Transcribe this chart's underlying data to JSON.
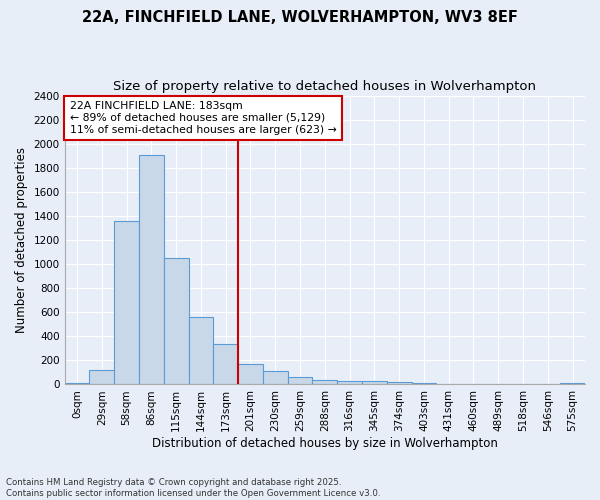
{
  "title1": "22A, FINCHFIELD LANE, WOLVERHAMPTON, WV3 8EF",
  "title2": "Size of property relative to detached houses in Wolverhampton",
  "xlabel": "Distribution of detached houses by size in Wolverhampton",
  "ylabel": "Number of detached properties",
  "footnote1": "Contains HM Land Registry data © Crown copyright and database right 2025.",
  "footnote2": "Contains public sector information licensed under the Open Government Licence v3.0.",
  "bin_labels": [
    "0sqm",
    "29sqm",
    "58sqm",
    "86sqm",
    "115sqm",
    "144sqm",
    "173sqm",
    "201sqm",
    "230sqm",
    "259sqm",
    "288sqm",
    "316sqm",
    "345sqm",
    "374sqm",
    "403sqm",
    "431sqm",
    "460sqm",
    "489sqm",
    "518sqm",
    "546sqm",
    "575sqm"
  ],
  "bar_heights": [
    10,
    120,
    1360,
    1910,
    1050,
    560,
    335,
    170,
    110,
    65,
    40,
    30,
    25,
    20,
    10,
    5,
    3,
    2,
    1,
    0,
    10
  ],
  "bar_color": "#c8d8e8",
  "bar_edge_color": "#5b9bd5",
  "property_line_color": "#cc0000",
  "annotation_line1": "22A FINCHFIELD LANE: 183sqm",
  "annotation_line2": "← 89% of detached houses are smaller (5,129)",
  "annotation_line3": "11% of semi-detached houses are larger (623) →",
  "annotation_box_color": "#ffffff",
  "annotation_box_edge_color": "#cc0000",
  "ylim": [
    0,
    2400
  ],
  "yticks": [
    0,
    200,
    400,
    600,
    800,
    1000,
    1200,
    1400,
    1600,
    1800,
    2000,
    2200,
    2400
  ],
  "bg_color": "#e8eef8",
  "grid_color": "#ffffff",
  "title_fontsize": 10.5,
  "subtitle_fontsize": 9.5,
  "axis_label_fontsize": 8.5,
  "tick_fontsize": 7.5,
  "annotation_fontsize": 7.8
}
